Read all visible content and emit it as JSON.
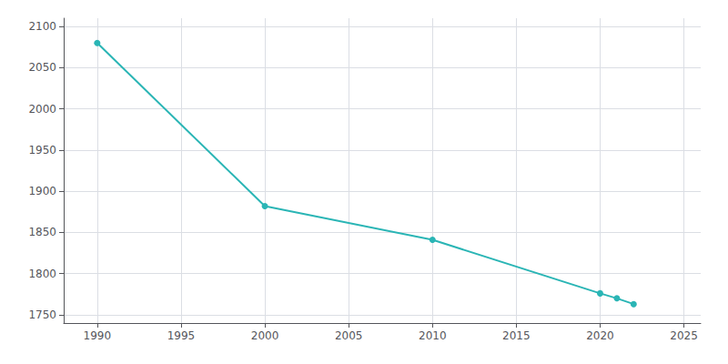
{
  "chart_data": {
    "type": "line",
    "x": [
      1990,
      2000,
      2010,
      2020,
      2021,
      2022
    ],
    "values": [
      2080,
      1882,
      1841,
      1776,
      1770,
      1763
    ],
    "color": "#2ab5b5",
    "marker": "circle",
    "xlim": [
      1988,
      2026
    ],
    "ylim": [
      1740,
      2110
    ],
    "xticks": [
      1990,
      1995,
      2000,
      2005,
      2010,
      2015,
      2020,
      2025
    ],
    "yticks": [
      1750,
      1800,
      1850,
      1900,
      1950,
      2000,
      2050,
      2100
    ],
    "grid": true
  }
}
